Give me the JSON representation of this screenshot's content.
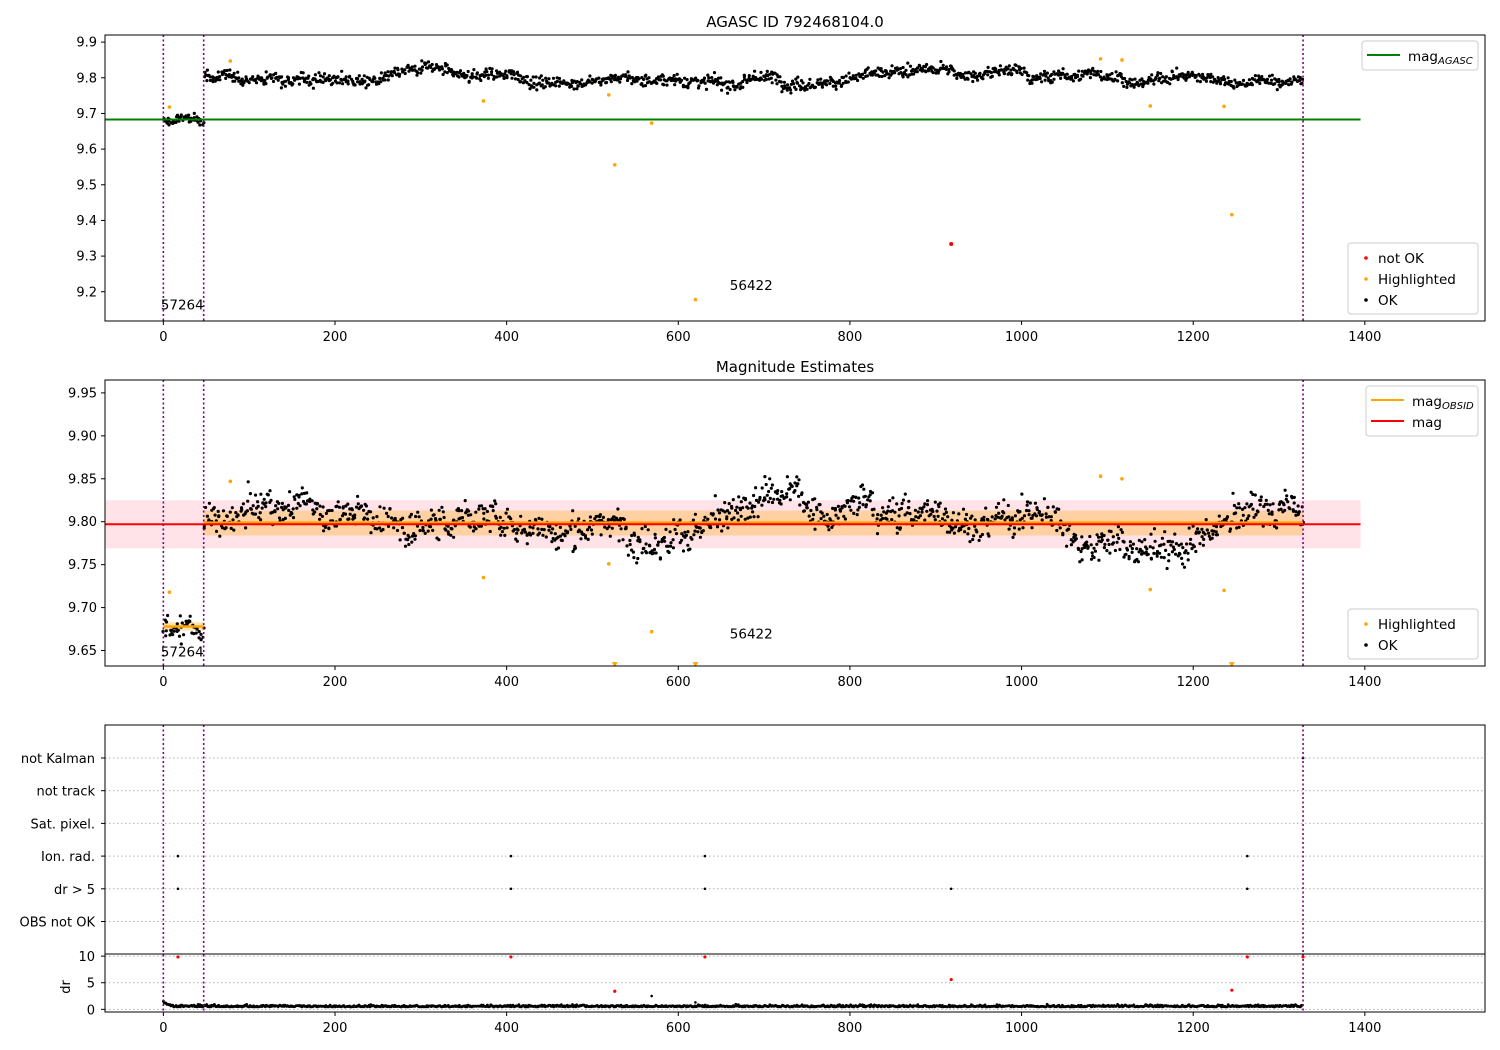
{
  "chart_data": [
    {
      "type": "scatter",
      "title": "AGASC ID 792468104.0",
      "xlim": [
        -68,
        1540
      ],
      "ylim": [
        9.118,
        9.92
      ],
      "xticks": [
        0,
        200,
        400,
        600,
        800,
        1000,
        1200,
        1400
      ],
      "yticks": [
        9.2,
        9.3,
        9.4,
        9.5,
        9.6,
        9.7,
        9.8,
        9.9
      ],
      "ytick_decimals": 1,
      "vlines": [
        0,
        47,
        1328
      ],
      "annotations": [
        {
          "x": -3,
          "y": 9.15,
          "text": "57264"
        },
        {
          "x": 660,
          "y": 9.205,
          "text": "56422"
        }
      ],
      "hlines": [
        {
          "name": "mag_agasc",
          "y": 9.683,
          "x0": -68,
          "x1": 1395,
          "color": "#008000"
        }
      ],
      "segments": [
        {
          "x0": 0,
          "x1": 47,
          "mean": 9.678,
          "amp": 0.009
        },
        {
          "x0": 47,
          "x1": 1328,
          "mean": 9.805,
          "amp": 0.011
        }
      ],
      "highlighted": [
        [
          7,
          9.718
        ],
        [
          78,
          9.847
        ],
        [
          373,
          9.735
        ],
        [
          519,
          9.752
        ],
        [
          526,
          9.556
        ],
        [
          569,
          9.673
        ],
        [
          620,
          9.178
        ],
        [
          1092,
          9.853
        ],
        [
          1117,
          9.85
        ],
        [
          1150,
          9.721
        ],
        [
          1236,
          9.72
        ],
        [
          1245,
          9.416
        ]
      ],
      "not_ok": [
        [
          918,
          9.334
        ]
      ],
      "legend_top": {
        "entries": [
          {
            "label": "mag",
            "sub": "AGASC",
            "color": "#008000"
          }
        ]
      },
      "legend_bottom": {
        "entries": [
          {
            "label": "not OK",
            "color": "#ff0000"
          },
          {
            "label": "Highlighted",
            "color": "#ffa500"
          },
          {
            "label": "OK",
            "color": "#000000"
          }
        ]
      }
    },
    {
      "type": "scatter",
      "title": "Magnitude Estimates",
      "xlim": [
        -68,
        1540
      ],
      "ylim": [
        9.632,
        9.965
      ],
      "xticks": [
        0,
        200,
        400,
        600,
        800,
        1000,
        1200,
        1400
      ],
      "yticks": [
        9.65,
        9.7,
        9.75,
        9.8,
        9.85,
        9.9,
        9.95
      ],
      "ytick_decimals": 2,
      "vlines": [
        0,
        47,
        1328
      ],
      "annotations": [
        {
          "x": -3,
          "y": 9.643,
          "text": "57264"
        },
        {
          "x": 660,
          "y": 9.664,
          "text": "56422"
        }
      ],
      "hlines": [
        {
          "name": "mag",
          "y": 9.797,
          "x0": -68,
          "x1": 1395,
          "color": "#ff0000"
        }
      ],
      "bands": [
        {
          "y0": 9.769,
          "y1": 9.825,
          "x0": -68,
          "x1": 1395,
          "color": "#ffc0cb",
          "opacity": 0.45
        }
      ],
      "segments": [
        {
          "x0": 0,
          "x1": 47,
          "mean": 9.678,
          "amp": 0.009,
          "band": [
            9.673,
            9.683
          ]
        },
        {
          "x0": 47,
          "x1": 1328,
          "mean": 9.799,
          "amp": 0.012,
          "band": [
            9.784,
            9.813
          ]
        }
      ],
      "highlighted": [
        [
          7,
          9.718
        ],
        [
          78,
          9.847
        ],
        [
          373,
          9.735
        ],
        [
          519,
          9.751
        ],
        [
          569,
          9.672
        ],
        [
          1092,
          9.853
        ],
        [
          1117,
          9.85
        ],
        [
          1150,
          9.721
        ],
        [
          1236,
          9.72
        ]
      ],
      "clipped": [
        [
          526,
          9.633
        ],
        [
          620,
          9.633
        ],
        [
          1245,
          9.633
        ]
      ],
      "legend_top": {
        "entries": [
          {
            "label": "mag",
            "sub": "OBSID",
            "color": "#ffa500"
          },
          {
            "label": "mag",
            "color": "#ff0000"
          }
        ]
      },
      "legend_bottom": {
        "entries": [
          {
            "label": "Highlighted",
            "color": "#ffa500"
          },
          {
            "label": "OK",
            "color": "#000000"
          }
        ]
      }
    },
    {
      "type": "scatter",
      "xlim": [
        -68,
        1540
      ],
      "xticks": [
        0,
        200,
        400,
        600,
        800,
        1000,
        1200,
        1400
      ],
      "vlines": [
        0,
        47,
        1328
      ],
      "flag_rows": [
        "not Kalman",
        "not track",
        "Sat. pixel.",
        "Ion. rad.",
        "dr > 5",
        "OBS not OK"
      ],
      "flags": [
        {
          "row": "Ion. rad.",
          "x": [
            17,
            405,
            631,
            1263
          ]
        },
        {
          "row": "dr > 5",
          "x": [
            17,
            405,
            631,
            918,
            1263
          ]
        },
        {
          "row": "not Kalman",
          "x": [
            1328
          ]
        }
      ],
      "dr": {
        "ylabel": "dr",
        "ylim": [
          -0.5,
          10.4
        ],
        "yticks": [
          0,
          5,
          10
        ],
        "baseline_mean": 0.45,
        "red_points": [
          [
            17,
            9.85
          ],
          [
            405,
            9.85
          ],
          [
            631,
            9.85
          ],
          [
            1263,
            9.85
          ],
          [
            1328,
            9.85
          ],
          [
            918,
            5.6
          ],
          [
            526,
            3.4
          ],
          [
            1245,
            3.6
          ]
        ],
        "black_points": [
          [
            569,
            2.5
          ],
          [
            620,
            1.3
          ],
          [
            1150,
            0.9
          ]
        ]
      }
    }
  ]
}
